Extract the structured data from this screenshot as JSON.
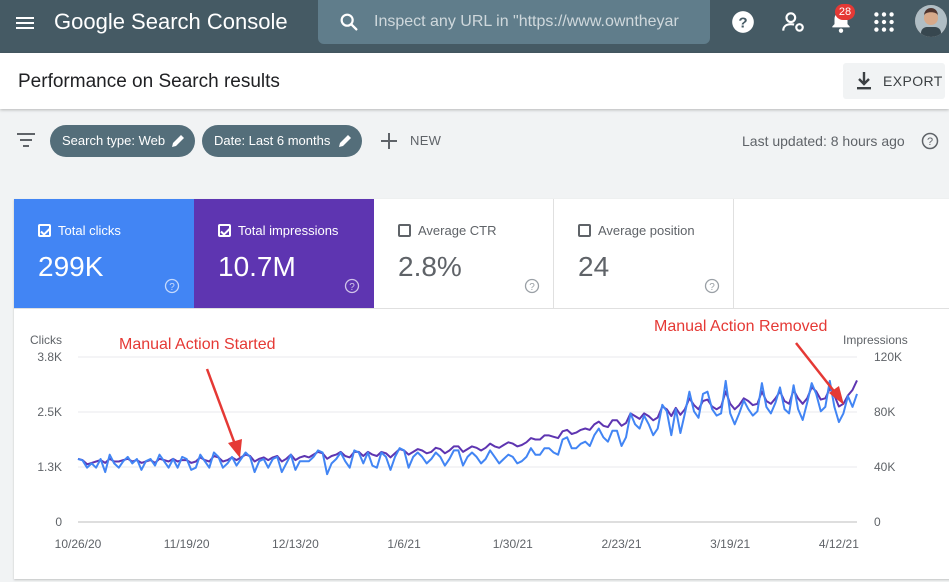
{
  "app": {
    "title": "Google Search Console"
  },
  "search": {
    "placeholder": "Inspect any URL in \"https://www.owntheyar"
  },
  "notifications": {
    "count": "28"
  },
  "page": {
    "title": "Performance on Search results"
  },
  "export": {
    "label": "EXPORT"
  },
  "filters": {
    "chips": [
      "Search type: Web",
      "Date: Last 6 months"
    ],
    "new_label": "NEW",
    "last_updated": "Last updated: 8 hours ago"
  },
  "metrics": [
    {
      "label": "Total clicks",
      "value": "299K",
      "checked": true,
      "color": "#4285f4"
    },
    {
      "label": "Total impressions",
      "value": "10.7M",
      "checked": true,
      "color": "#5e35b1"
    },
    {
      "label": "Average CTR",
      "value": "2.8%",
      "checked": false
    },
    {
      "label": "Average position",
      "value": "24",
      "checked": false
    }
  ],
  "annotations": {
    "started": "Manual Action Started",
    "removed": "Manual Action Removed",
    "color": "#e53935"
  },
  "chart_data": {
    "type": "line",
    "ylabel_left": "Clicks",
    "ylabel_right": "Impressions",
    "yticks_left": [
      "3.8K",
      "2.5K",
      "1.3K",
      "0"
    ],
    "yticks_right": [
      "120K",
      "80K",
      "40K",
      "0"
    ],
    "ylim_left": [
      0,
      3800
    ],
    "ylim_right": [
      0,
      120000
    ],
    "xticks": [
      "10/26/20",
      "11/19/20",
      "12/13/20",
      "1/6/21",
      "1/30/21",
      "2/23/21",
      "3/19/21",
      "4/12/21"
    ],
    "x_start": "10/26/20",
    "grid": true,
    "legend": "none",
    "series": [
      {
        "name": "Total clicks",
        "axis": "left",
        "color": "#4285f4",
        "values": [
          1450,
          1420,
          1250,
          1350,
          1250,
          1450,
          1150,
          1550,
          1350,
          1250,
          1400,
          1500,
          1350,
          1450,
          1200,
          1400,
          1450,
          1300,
          1550,
          1400,
          1250,
          1450,
          1250,
          1500,
          1450,
          1200,
          1250,
          1550,
          1400,
          1250,
          1600,
          1500,
          1250,
          1350,
          1500,
          1300,
          1450,
          1600,
          1500,
          1150,
          1400,
          1450,
          1250,
          1450,
          1500,
          1150,
          1350,
          1550,
          1200,
          1400,
          1400,
          1400,
          1500,
          1650,
          1600,
          1100,
          1350,
          1450,
          1600,
          1400,
          1250,
          1650,
          1600,
          1350,
          1600,
          1300,
          1250,
          1600,
          1500,
          1200,
          1500,
          1700,
          1650,
          1250,
          1500,
          1600,
          1500,
          1350,
          1450,
          1600,
          1500,
          1300,
          1450,
          1650,
          1650,
          1300,
          1500,
          1600,
          1500,
          1350,
          1450,
          1650,
          1500,
          1350,
          1450,
          1550,
          1500,
          1350,
          1400,
          1500,
          1700,
          1550,
          1550,
          1700,
          1700,
          1600,
          1550,
          1900,
          1950,
          1700,
          1700,
          1800,
          1850,
          1750,
          2000,
          2150,
          1950,
          1850,
          2100,
          2100,
          1750,
          1950,
          2500,
          2250,
          2150,
          2450,
          2250,
          2000,
          2150,
          2700,
          2550,
          2000,
          2600,
          2050,
          2500,
          3000,
          2550,
          2400,
          2950,
          3000,
          2600,
          2450,
          2500,
          3250,
          2500,
          2250,
          2500,
          2800,
          2600,
          2450,
          2550,
          3200,
          2650,
          2500,
          2750,
          3100,
          2600,
          2500,
          3150,
          2600,
          2350,
          2750,
          3200,
          2950,
          2550,
          2650,
          3250,
          2650,
          2300,
          2500,
          2900,
          2650,
          2950
        ]
      },
      {
        "name": "Total impressions",
        "axis": "right",
        "color": "#5e35b1",
        "values": [
          46000,
          45000,
          42000,
          43000,
          44000,
          45000,
          43000,
          46000,
          44000,
          44000,
          45000,
          46000,
          44000,
          45000,
          43000,
          44000,
          45000,
          43000,
          46000,
          45000,
          44000,
          46000,
          44000,
          45000,
          45000,
          43000,
          44000,
          47000,
          45000,
          44000,
          48000,
          47000,
          44000,
          45000,
          47000,
          45000,
          47000,
          49000,
          48000,
          44000,
          46000,
          47000,
          45000,
          47000,
          48000,
          44000,
          46000,
          49000,
          45000,
          47000,
          48000,
          47000,
          49000,
          51000,
          50000,
          46000,
          48000,
          49000,
          51000,
          48000,
          47000,
          51000,
          51000,
          48000,
          51000,
          49000,
          48000,
          51000,
          50000,
          47000,
          50000,
          53000,
          52000,
          49000,
          51000,
          53000,
          52000,
          50000,
          51000,
          54000,
          53000,
          50000,
          52000,
          55000,
          55000,
          51000,
          53000,
          55000,
          54000,
          52000,
          54000,
          57000,
          55000,
          54000,
          56000,
          58000,
          57000,
          55000,
          56000,
          58000,
          61000,
          60000,
          60000,
          63000,
          63000,
          62000,
          61000,
          66000,
          67000,
          64000,
          65000,
          67000,
          68000,
          67000,
          71000,
          73000,
          70000,
          69000,
          74000,
          74000,
          70000,
          72000,
          79000,
          77000,
          75000,
          79000,
          77000,
          74000,
          76000,
          84000,
          82000,
          77000,
          83000,
          78000,
          82000,
          90000,
          85000,
          82000,
          88000,
          89000,
          84000,
          82000,
          84000,
          95000,
          86000,
          82000,
          85000,
          90000,
          88000,
          85000,
          86000,
          95000,
          88000,
          86000,
          90000,
          95000,
          88000,
          86000,
          96000,
          90000,
          86000,
          90000,
          98000,
          95000,
          89000,
          90000,
          97000,
          92000,
          84000,
          86000,
          92000,
          96000,
          103000
        ]
      }
    ]
  }
}
